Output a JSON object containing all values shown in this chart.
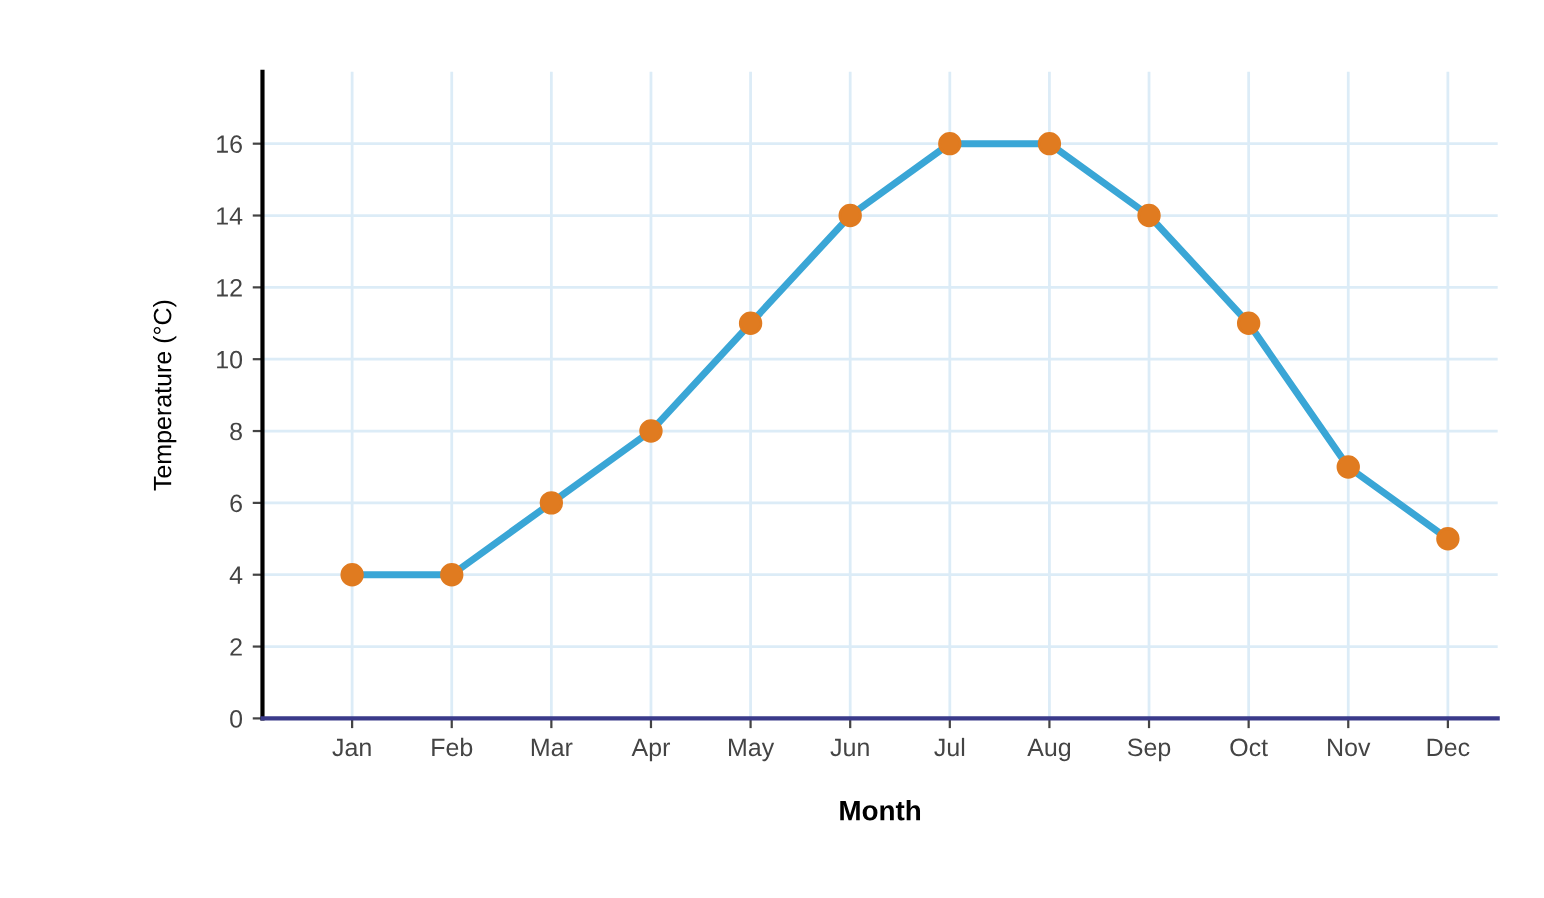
{
  "chart_data": {
    "type": "line",
    "xlabel": "Month",
    "ylabel": "Temperature (°C)",
    "categories": [
      "Jan",
      "Feb",
      "Mar",
      "Apr",
      "May",
      "Jun",
      "Jul",
      "Aug",
      "Sep",
      "Oct",
      "Nov",
      "Dec"
    ],
    "series": [
      {
        "color": "#3aa6d6",
        "colors": [
          "#e07b20",
          "#e07b20",
          "#e07b20",
          "#e07b20",
          "#e07b20",
          "#e07b20",
          "#e07b20",
          "#e07b20",
          "#e07b20",
          "#e07b20",
          "#e07b20",
          "#e07b20"
        ],
        "values": [
          4,
          4,
          6,
          8,
          11,
          14,
          16,
          16,
          14,
          11,
          7,
          5
        ]
      }
    ],
    "ylim": [
      0,
      18
    ],
    "yticks": [
      0,
      2,
      4,
      6,
      8,
      10,
      12,
      14,
      16
    ],
    "grid": true,
    "marker": "circle",
    "line_style": "solid"
  }
}
